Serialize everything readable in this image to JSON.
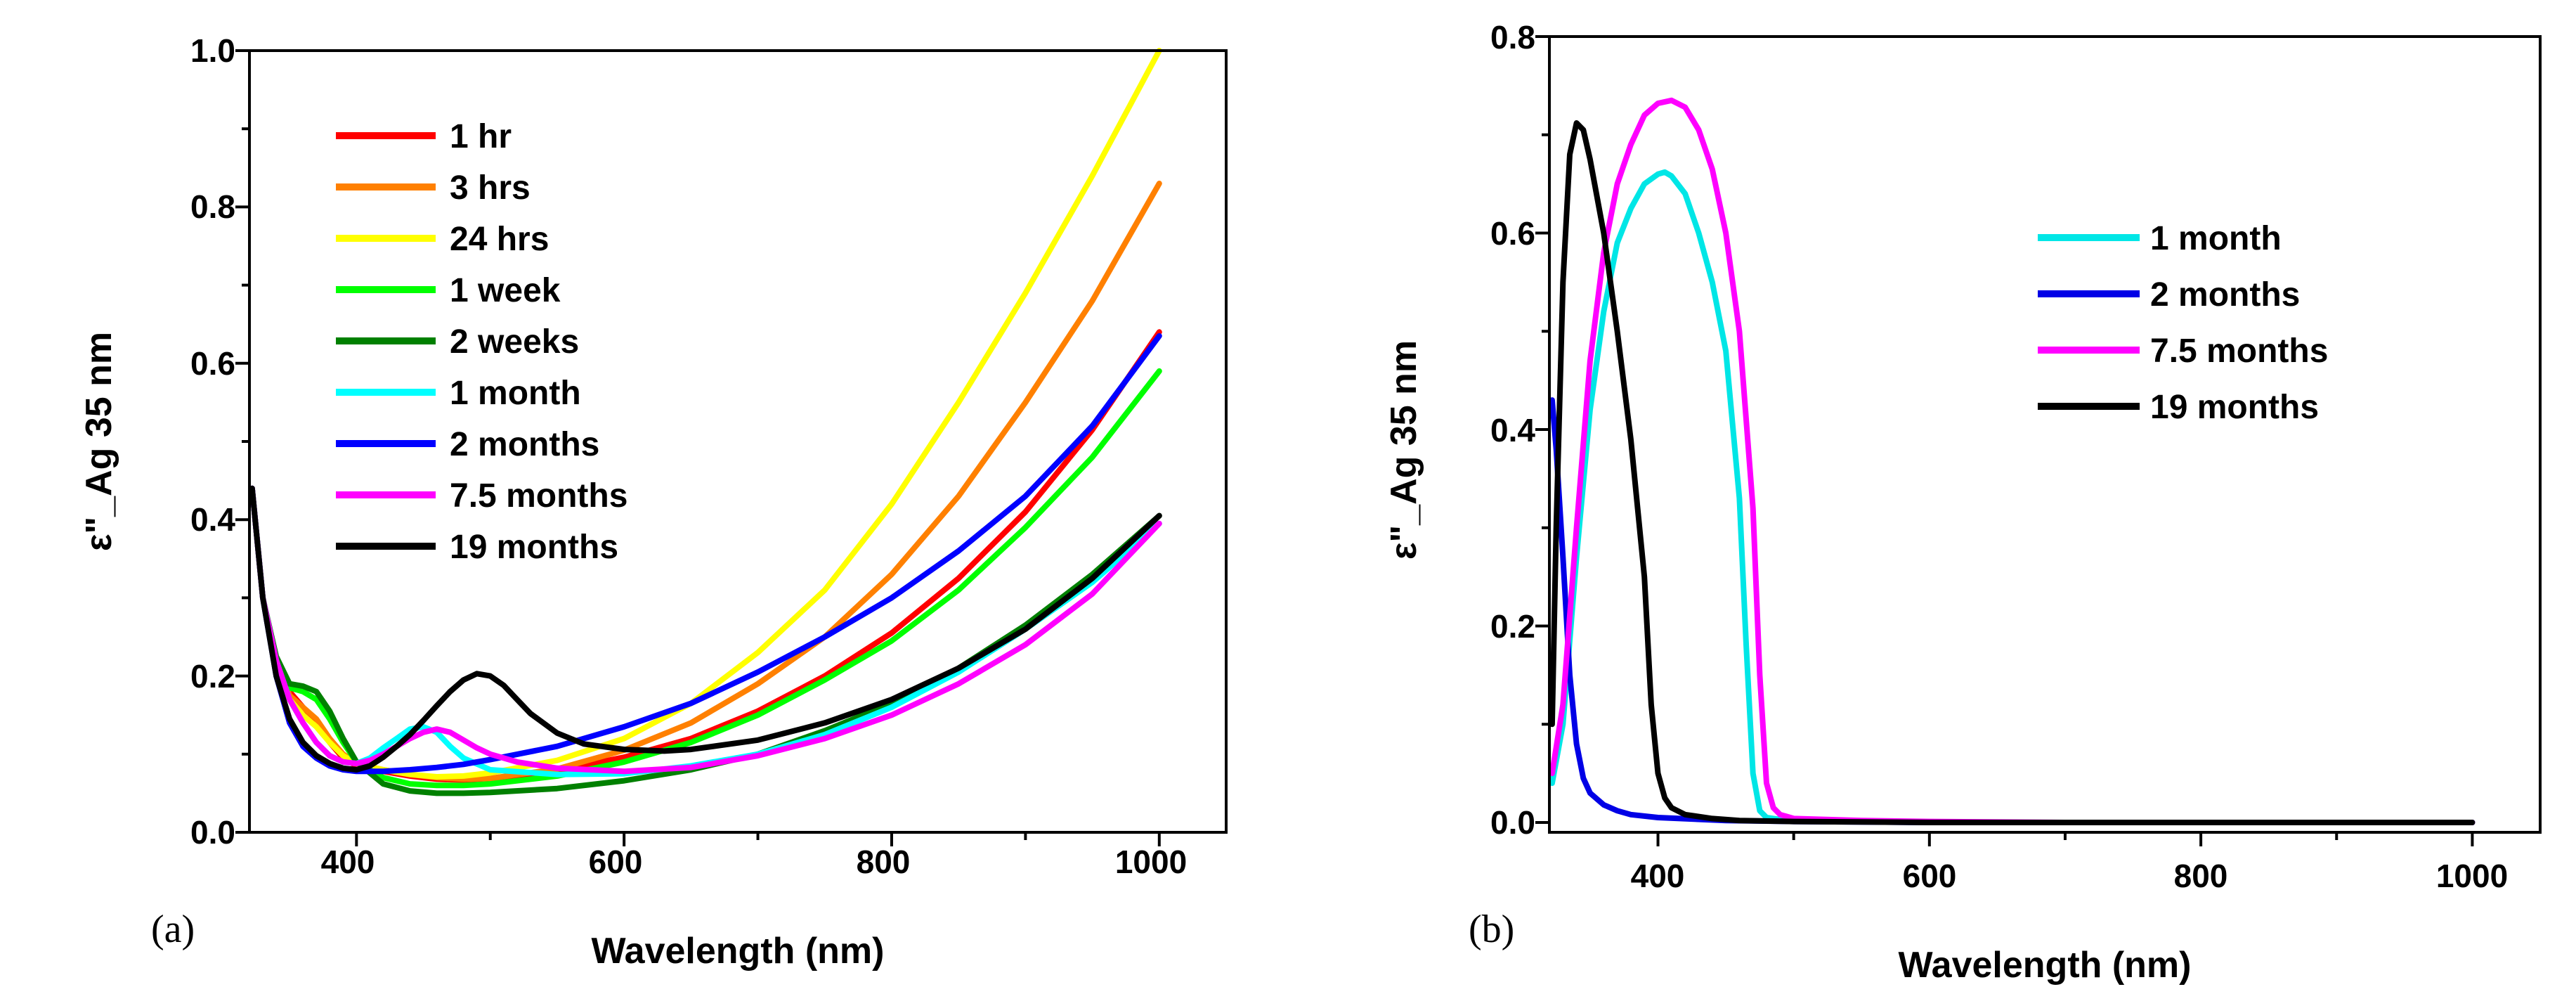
{
  "chart_data": [
    {
      "type": "line",
      "panel_label": "(a)",
      "xlabel": "Wavelength (nm)",
      "ylabel": "ε\"_Ag 35 nm",
      "xlim": [
        320,
        1050
      ],
      "ylim": [
        0,
        1.0
      ],
      "xticks": [
        400,
        600,
        800,
        1000
      ],
      "xtick_labels": [
        "400",
        "600",
        "800",
        "1000"
      ],
      "yticks": [
        0,
        0.2,
        0.4,
        0.6,
        0.8,
        1.0
      ],
      "ytick_labels": [
        "0.0",
        "0.2",
        "0.4",
        "0.6",
        "0.8",
        "1.0"
      ],
      "legend_position": "top-left",
      "series": [
        {
          "name": "1 hr",
          "color": "#ff0000",
          "x": [
            322,
            330,
            340,
            350,
            360,
            370,
            380,
            390,
            400,
            420,
            440,
            460,
            480,
            500,
            550,
            600,
            650,
            700,
            750,
            800,
            850,
            900,
            950,
            1000
          ],
          "y": [
            0.44,
            0.3,
            0.22,
            0.18,
            0.16,
            0.14,
            0.115,
            0.095,
            0.085,
            0.078,
            0.072,
            0.068,
            0.067,
            0.069,
            0.079,
            0.096,
            0.12,
            0.155,
            0.2,
            0.255,
            0.325,
            0.41,
            0.515,
            0.64
          ]
        },
        {
          "name": "3 hrs",
          "color": "#ff8000",
          "x": [
            322,
            330,
            340,
            350,
            360,
            370,
            380,
            390,
            400,
            420,
            440,
            460,
            480,
            500,
            550,
            600,
            650,
            700,
            750,
            800,
            850,
            900,
            950,
            1000
          ],
          "y": [
            0.44,
            0.3,
            0.22,
            0.175,
            0.16,
            0.145,
            0.12,
            0.1,
            0.088,
            0.08,
            0.074,
            0.07,
            0.068,
            0.069,
            0.081,
            0.105,
            0.14,
            0.19,
            0.25,
            0.33,
            0.43,
            0.55,
            0.68,
            0.83
          ]
        },
        {
          "name": "24 hrs",
          "color": "#ffff00",
          "x": [
            322,
            330,
            340,
            350,
            360,
            370,
            380,
            390,
            400,
            420,
            440,
            460,
            480,
            500,
            550,
            600,
            650,
            700,
            750,
            800,
            850,
            900,
            950,
            1000
          ],
          "y": [
            0.44,
            0.3,
            0.21,
            0.17,
            0.15,
            0.135,
            0.115,
            0.098,
            0.088,
            0.08,
            0.074,
            0.071,
            0.072,
            0.076,
            0.092,
            0.12,
            0.165,
            0.23,
            0.31,
            0.42,
            0.55,
            0.69,
            0.84,
            1.0
          ]
        },
        {
          "name": "1 week",
          "color": "#00ff00",
          "x": [
            322,
            330,
            340,
            350,
            360,
            370,
            380,
            390,
            400,
            420,
            440,
            460,
            480,
            500,
            550,
            600,
            650,
            700,
            750,
            800,
            850,
            900,
            950,
            1000
          ],
          "y": [
            0.44,
            0.3,
            0.22,
            0.185,
            0.18,
            0.17,
            0.145,
            0.115,
            0.09,
            0.07,
            0.062,
            0.06,
            0.06,
            0.062,
            0.072,
            0.09,
            0.115,
            0.15,
            0.195,
            0.245,
            0.31,
            0.39,
            0.48,
            0.59
          ]
        },
        {
          "name": "2 weeks",
          "color": "#008000",
          "x": [
            322,
            330,
            340,
            350,
            360,
            370,
            380,
            390,
            400,
            420,
            440,
            460,
            480,
            500,
            550,
            600,
            650,
            700,
            750,
            800,
            850,
            900,
            950,
            1000
          ],
          "y": [
            0.44,
            0.3,
            0.225,
            0.19,
            0.187,
            0.18,
            0.155,
            0.12,
            0.09,
            0.062,
            0.053,
            0.05,
            0.05,
            0.051,
            0.056,
            0.066,
            0.08,
            0.1,
            0.13,
            0.165,
            0.21,
            0.265,
            0.33,
            0.405
          ]
        },
        {
          "name": "1 month",
          "color": "#00ffff",
          "x": [
            322,
            330,
            340,
            350,
            360,
            370,
            380,
            390,
            400,
            410,
            420,
            430,
            440,
            450,
            460,
            470,
            480,
            500,
            550,
            600,
            650,
            700,
            750,
            800,
            850,
            900,
            950,
            1000
          ],
          "y": [
            0.44,
            0.3,
            0.22,
            0.17,
            0.14,
            0.115,
            0.098,
            0.09,
            0.088,
            0.095,
            0.108,
            0.12,
            0.132,
            0.135,
            0.128,
            0.11,
            0.095,
            0.08,
            0.074,
            0.075,
            0.085,
            0.1,
            0.125,
            0.16,
            0.205,
            0.26,
            0.32,
            0.395
          ]
        },
        {
          "name": "2 months",
          "color": "#0000ff",
          "x": [
            322,
            330,
            340,
            350,
            360,
            370,
            380,
            390,
            400,
            420,
            440,
            460,
            480,
            500,
            550,
            600,
            650,
            700,
            750,
            800,
            850,
            900,
            950,
            1000
          ],
          "y": [
            0.44,
            0.3,
            0.2,
            0.14,
            0.11,
            0.095,
            0.085,
            0.08,
            0.078,
            0.078,
            0.08,
            0.083,
            0.087,
            0.093,
            0.11,
            0.135,
            0.165,
            0.205,
            0.25,
            0.3,
            0.36,
            0.43,
            0.52,
            0.635
          ]
        },
        {
          "name": "7.5 months",
          "color": "#ff00ff",
          "x": [
            322,
            330,
            340,
            350,
            360,
            370,
            380,
            390,
            400,
            410,
            420,
            430,
            440,
            450,
            460,
            470,
            480,
            490,
            500,
            520,
            550,
            600,
            650,
            700,
            750,
            800,
            850,
            900,
            950,
            1000
          ],
          "y": [
            0.44,
            0.3,
            0.22,
            0.17,
            0.14,
            0.115,
            0.098,
            0.09,
            0.088,
            0.092,
            0.1,
            0.11,
            0.12,
            0.128,
            0.132,
            0.128,
            0.118,
            0.108,
            0.1,
            0.09,
            0.082,
            0.078,
            0.083,
            0.098,
            0.12,
            0.15,
            0.19,
            0.24,
            0.305,
            0.395
          ]
        },
        {
          "name": "19 months",
          "color": "#000000",
          "x": [
            322,
            330,
            340,
            350,
            360,
            370,
            380,
            390,
            400,
            410,
            420,
            430,
            440,
            450,
            460,
            470,
            480,
            490,
            500,
            510,
            520,
            530,
            550,
            570,
            600,
            630,
            650,
            700,
            750,
            800,
            850,
            900,
            950,
            1000
          ],
          "y": [
            0.44,
            0.3,
            0.2,
            0.145,
            0.115,
            0.098,
            0.088,
            0.082,
            0.08,
            0.085,
            0.096,
            0.11,
            0.125,
            0.143,
            0.162,
            0.18,
            0.195,
            0.203,
            0.2,
            0.188,
            0.17,
            0.152,
            0.127,
            0.113,
            0.106,
            0.104,
            0.106,
            0.118,
            0.14,
            0.17,
            0.21,
            0.26,
            0.325,
            0.405
          ]
        }
      ]
    },
    {
      "type": "line",
      "panel_label": "(b)",
      "xlabel": "Wavelength (nm)",
      "ylabel": "ε\"_Ag 35 nm",
      "xlim": [
        320,
        1050
      ],
      "ylim": [
        -0.01,
        0.8
      ],
      "xticks": [
        400,
        600,
        800,
        1000
      ],
      "xtick_labels": [
        "400",
        "600",
        "800",
        "1000"
      ],
      "yticks": [
        0,
        0.2,
        0.4,
        0.6,
        0.8
      ],
      "ytick_labels": [
        "0.0",
        "0.2",
        "0.4",
        "0.6",
        "0.8"
      ],
      "legend_position": "top-right",
      "series": [
        {
          "name": "1 month",
          "color": "#00e6e6",
          "x": [
            322,
            330,
            340,
            350,
            360,
            370,
            380,
            390,
            400,
            405,
            410,
            420,
            430,
            440,
            450,
            460,
            465,
            470,
            475,
            480,
            490,
            500,
            550,
            600,
            700,
            800,
            1000
          ],
          "y": [
            0.04,
            0.1,
            0.27,
            0.42,
            0.52,
            0.59,
            0.625,
            0.65,
            0.66,
            0.662,
            0.658,
            0.64,
            0.6,
            0.55,
            0.48,
            0.33,
            0.18,
            0.05,
            0.012,
            0.005,
            0.003,
            0.002,
            0.001,
            0.0,
            0.0,
            0.0,
            0.0
          ]
        },
        {
          "name": "2 months",
          "color": "#0000e6",
          "x": [
            322,
            325,
            330,
            335,
            340,
            345,
            350,
            360,
            370,
            380,
            400,
            450,
            500,
            600,
            800,
            1000
          ],
          "y": [
            0.43,
            0.38,
            0.27,
            0.15,
            0.08,
            0.045,
            0.03,
            0.018,
            0.012,
            0.008,
            0.005,
            0.002,
            0.001,
            0.0,
            0.0,
            0.0
          ]
        },
        {
          "name": "7.5 months",
          "color": "#ff00ff",
          "x": [
            322,
            330,
            340,
            350,
            360,
            370,
            380,
            390,
            400,
            410,
            420,
            430,
            440,
            450,
            460,
            470,
            475,
            480,
            485,
            490,
            500,
            550,
            600,
            700,
            800,
            1000
          ],
          "y": [
            0.05,
            0.12,
            0.3,
            0.47,
            0.58,
            0.65,
            0.69,
            0.72,
            0.732,
            0.735,
            0.728,
            0.705,
            0.665,
            0.6,
            0.5,
            0.32,
            0.15,
            0.04,
            0.015,
            0.008,
            0.004,
            0.002,
            0.001,
            0.0,
            0.0,
            0.0
          ]
        },
        {
          "name": "19 months",
          "color": "#000000",
          "x": [
            322,
            325,
            330,
            335,
            340,
            345,
            350,
            360,
            370,
            380,
            390,
            395,
            400,
            405,
            410,
            420,
            440,
            460,
            500,
            600,
            800,
            1000
          ],
          "y": [
            0.1,
            0.3,
            0.55,
            0.68,
            0.712,
            0.705,
            0.675,
            0.6,
            0.5,
            0.39,
            0.25,
            0.12,
            0.05,
            0.025,
            0.015,
            0.008,
            0.004,
            0.002,
            0.001,
            0.0,
            0.0,
            0.0
          ]
        }
      ]
    }
  ]
}
